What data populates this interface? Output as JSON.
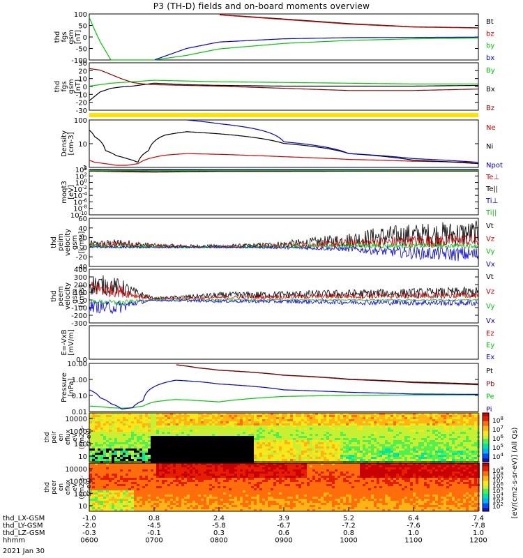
{
  "title": "P3 (TH-D) fields and on-board moments overview",
  "date_label": "2021 Jan 30",
  "colorbar_label": "[eV/(cm2-s-sr-eV)] (All Qs)",
  "colors": {
    "black": "#000000",
    "red": "#d40000",
    "green": "#00c800",
    "blue": "#0000e0",
    "yellow": "#ffe400",
    "maroon": "#8b0000"
  },
  "x_axis": {
    "ticks": [
      "0600",
      "0700",
      "0800",
      "0900",
      "1000",
      "1100",
      "1200"
    ],
    "row_labels": [
      "thd_LX-GSM",
      "thd_LY-GSM",
      "thd_LZ-GSM",
      "hhmm"
    ],
    "lx": [
      "-1.0",
      "0.8",
      "2.4",
      "3.9",
      "5.2",
      "6.4",
      "7.4"
    ],
    "ly": [
      "-2.0",
      "-4.5",
      "-5.8",
      "-6.7",
      "-7.2",
      "-7.6",
      "-7.8"
    ],
    "lz": [
      "-0.3",
      "-0.1",
      "0.3",
      "0.6",
      "0.8",
      "1.0",
      "1.0"
    ],
    "hhmm": [
      "0600",
      "0700",
      "0800",
      "0900",
      "1000",
      "1100",
      "1200"
    ]
  },
  "chart_data": [
    {
      "type": "line",
      "name": "fgs_gsm_zoom",
      "ylabel": [
        "thd",
        "fgs",
        "gsm",
        "[nT]"
      ],
      "ylim": [
        -100,
        100
      ],
      "yticks": [
        "100",
        "50",
        "0",
        "-50",
        "-100"
      ],
      "x": [
        0,
        5,
        10,
        20,
        30,
        40,
        60,
        90,
        120,
        180,
        240,
        300,
        360
      ],
      "series": [
        {
          "name": "Bt",
          "color": "#000000",
          "values": [
            null,
            null,
            null,
            null,
            null,
            null,
            null,
            null,
            97,
            78,
            58,
            44,
            40
          ]
        },
        {
          "name": "bz",
          "color": "#d40000",
          "values": [
            null,
            null,
            null,
            null,
            null,
            null,
            null,
            null,
            96,
            76,
            56,
            43,
            39
          ]
        },
        {
          "name": "by",
          "color": "#00c800",
          "values": [
            85,
            30,
            -20,
            -100,
            -100,
            -100,
            -100,
            -80,
            -52,
            -28,
            -15,
            -8,
            -5
          ]
        },
        {
          "name": "bx",
          "color": "#0000e0",
          "values": [
            null,
            null,
            null,
            null,
            null,
            null,
            -100,
            -50,
            -22,
            -8,
            -3,
            -2,
            -1
          ]
        }
      ]
    },
    {
      "type": "line",
      "name": "fgs_gsm",
      "ylabel": [
        "thd",
        "fgs",
        "gsm",
        "[nT]"
      ],
      "ylim": [
        -35,
        30
      ],
      "yticks": [
        "30",
        "20",
        "10",
        "0",
        "-10",
        "-20",
        "-30"
      ],
      "x": [
        0,
        10,
        20,
        30,
        40,
        50,
        60,
        90,
        120,
        180,
        240,
        300,
        360
      ],
      "series": [
        {
          "name": "By",
          "color": "#00c800",
          "values": [
            -2,
            0,
            2,
            3,
            4,
            5,
            6,
            5,
            4,
            3,
            2,
            1,
            1
          ]
        },
        {
          "name": "Bx",
          "color": "#000000",
          "values": [
            -22,
            -10,
            -5,
            -3,
            -2,
            0,
            2,
            0,
            -1,
            -2,
            -2,
            -2,
            -1
          ]
        },
        {
          "name": "Bz",
          "color": "#8b0000",
          "values": [
            22,
            20,
            14,
            8,
            3,
            1,
            0,
            -1,
            -2,
            -5,
            -8,
            -8,
            -6
          ]
        }
      ]
    },
    {
      "type": "line",
      "name": "density",
      "yscale": "log",
      "ylabel": [
        "Density",
        "[cm-3]"
      ],
      "ylim": [
        0.3,
        200
      ],
      "yticks": [
        "100",
        "10",
        "1"
      ],
      "x": [
        0,
        5,
        15,
        25,
        35,
        45,
        55,
        70,
        90,
        120,
        180,
        240,
        300,
        360
      ],
      "series": [
        {
          "name": "Ne",
          "color": "#d40000",
          "values": [
            0.8,
            0.6,
            0.5,
            0.4,
            0.4,
            0.5,
            1.0,
            1.6,
            2.0,
            1.8,
            1.3,
            0.9,
            0.7,
            0.6
          ]
        },
        {
          "name": "Ni",
          "color": "#000000",
          "values": [
            50,
            20,
            3,
            1.5,
            1.0,
            0.6,
            3,
            25,
            40,
            30,
            8,
            2,
            0.8,
            0.5
          ]
        },
        {
          "name": "Npot",
          "color": "#0000e0",
          "values": [
            null,
            null,
            null,
            null,
            null,
            null,
            null,
            null,
            200,
            120,
            10,
            2,
            1,
            0.6
          ]
        }
      ]
    },
    {
      "type": "line",
      "name": "temperature",
      "yscale": "log",
      "ylabel": [
        "moqt3",
        "[eV]"
      ],
      "ylim": [
        1e-10,
        10000.0
      ],
      "yticks": [
        "10^4",
        "10^2",
        "10^0",
        "10^-2",
        "10^-4",
        "10^-6",
        "10^-8",
        "10^-10"
      ],
      "x": [
        0,
        30,
        60,
        120,
        180,
        240,
        300,
        360
      ],
      "series": [
        {
          "name": "Te⊥",
          "color": "#d40000",
          "values": [
            3000,
            2000,
            1500,
            2500,
            2500,
            3000,
            3000,
            3000
          ]
        },
        {
          "name": "Te||",
          "color": "#000000",
          "values": [
            4000,
            3000,
            2000,
            3000,
            3500,
            3500,
            4000,
            4000
          ]
        },
        {
          "name": "Ti⊥",
          "color": "#0000e0",
          "values": [
            6000,
            5000,
            6000,
            7000,
            7000,
            7000,
            7000,
            7000
          ]
        },
        {
          "name": "Ti||",
          "color": "#00c800",
          "values": [
            5000,
            4000,
            4500,
            5000,
            5000,
            5000,
            5000,
            5000
          ]
        }
      ]
    },
    {
      "type": "line",
      "name": "peim_velocity",
      "noisy": true,
      "ylabel": [
        "thd",
        "peim",
        "velocity",
        "gsm",
        "[km/s]"
      ],
      "ylim": [
        -40,
        60
      ],
      "yticks": [
        "60",
        "40",
        "20",
        "0",
        "-20",
        "-40"
      ],
      "x": [
        0,
        30,
        60,
        90,
        120,
        150,
        180,
        210,
        240,
        270,
        300,
        330,
        360
      ],
      "series": [
        {
          "name": "Vt",
          "color": "#000000",
          "values": [
            6,
            8,
            3,
            2,
            2,
            3,
            6,
            10,
            15,
            22,
            25,
            27,
            28
          ]
        },
        {
          "name": "Vz",
          "color": "#d40000",
          "values": [
            4,
            5,
            2,
            1,
            1,
            2,
            3,
            5,
            8,
            10,
            12,
            13,
            14
          ]
        },
        {
          "name": "Vy",
          "color": "#00c800",
          "values": [
            2,
            2,
            1,
            0,
            0,
            1,
            1,
            2,
            3,
            3,
            3,
            3,
            3
          ]
        },
        {
          "name": "Vx",
          "color": "#0000e0",
          "values": [
            0,
            0,
            0,
            0,
            0,
            0,
            -1,
            -2,
            -4,
            -8,
            -12,
            -14,
            -15
          ]
        }
      ]
    },
    {
      "type": "line",
      "name": "peem_velocity",
      "noisy": true,
      "ylabel": [
        "thd",
        "peem",
        "velocity",
        "gsm",
        "[km/s]"
      ],
      "ylim": [
        -300,
        400
      ],
      "yticks": [
        "400",
        "300",
        "200",
        "100",
        "0",
        "-100",
        "-200",
        "-300"
      ],
      "x": [
        0,
        15,
        30,
        45,
        60,
        90,
        120,
        180,
        240,
        300,
        360
      ],
      "series": [
        {
          "name": "Vt",
          "color": "#000000",
          "values": [
            200,
            190,
            160,
            80,
            20,
            40,
            60,
            70,
            80,
            90,
            100
          ]
        },
        {
          "name": "Vz",
          "color": "#d40000",
          "values": [
            150,
            140,
            110,
            50,
            15,
            20,
            30,
            40,
            50,
            55,
            60
          ]
        },
        {
          "name": "Vy",
          "color": "#00c800",
          "values": [
            -20,
            -30,
            -40,
            -10,
            0,
            0,
            0,
            0,
            0,
            0,
            0
          ]
        },
        {
          "name": "Vx",
          "color": "#0000e0",
          "values": [
            -80,
            -100,
            -90,
            -30,
            -5,
            -10,
            -15,
            -20,
            -30,
            -35,
            -40
          ]
        }
      ]
    },
    {
      "type": "line",
      "name": "efield",
      "ylabel": [
        "E=-VxB",
        "[mV/m]"
      ],
      "ylim": [
        0,
        1
      ],
      "yticks": [
        "0.0"
      ],
      "x": [],
      "series": [
        {
          "name": "Ez",
          "color": "#d40000",
          "values": []
        },
        {
          "name": "Ey",
          "color": "#00c800",
          "values": []
        },
        {
          "name": "Ex",
          "color": "#0000e0",
          "values": []
        }
      ]
    },
    {
      "type": "line",
      "name": "pressure",
      "yscale": "log",
      "ylabel": [
        "Pressure",
        "[nPa]"
      ],
      "ylim": [
        0.008,
        25
      ],
      "yticks": [
        "10.00",
        "1.00",
        "0.10",
        "0.01"
      ],
      "x": [
        0,
        10,
        20,
        30,
        40,
        50,
        60,
        80,
        100,
        120,
        180,
        240,
        300,
        360
      ],
      "series": [
        {
          "name": "Pt",
          "color": "#000000",
          "values": [
            null,
            null,
            null,
            null,
            null,
            null,
            null,
            20,
            12,
            8,
            3.5,
            1.8,
            1.1,
            0.8
          ]
        },
        {
          "name": "Pb",
          "color": "#8b0000",
          "values": [
            null,
            null,
            null,
            null,
            null,
            null,
            null,
            20,
            12,
            8,
            3.4,
            1.7,
            1.0,
            0.7
          ]
        },
        {
          "name": "Pe",
          "color": "#00c800",
          "values": [
            0.02,
            0.018,
            0.015,
            0.014,
            0.015,
            0.02,
            0.04,
            0.06,
            0.05,
            0.04,
            0.1,
            0.12,
            0.13,
            0.13
          ]
        },
        {
          "name": "Pi",
          "color": "#0000e0",
          "values": [
            0.3,
            0.08,
            0.03,
            0.012,
            0.015,
            0.05,
            0.5,
            1.5,
            1.2,
            0.8,
            0.3,
            0.2,
            0.15,
            0.14
          ]
        }
      ]
    },
    {
      "type": "heatmap",
      "name": "peir_en_eflux",
      "ylabel": [
        "thd",
        "peir",
        "en",
        "eflux",
        "eV",
        "(cm2-s-",
        "sr-eV)"
      ],
      "yticks": [
        "10000",
        "1000",
        "100",
        "10"
      ],
      "colorbar_ticks": [
        "10^8",
        "10^7",
        "10^6",
        "10^5",
        "10^4"
      ]
    },
    {
      "type": "heatmap",
      "name": "peer_en_eflux",
      "ylabel": [
        "thd",
        "peer",
        "en",
        "eflux",
        "eV",
        "(cm2-s-",
        "sr-eV)"
      ],
      "yticks": [
        "10000",
        "1000",
        "100",
        "10"
      ],
      "colorbar_ticks": [
        "10^9",
        "10^8",
        "10^7",
        "10^6",
        "10^5",
        "10^4",
        "10^3",
        "10^2"
      ]
    }
  ]
}
